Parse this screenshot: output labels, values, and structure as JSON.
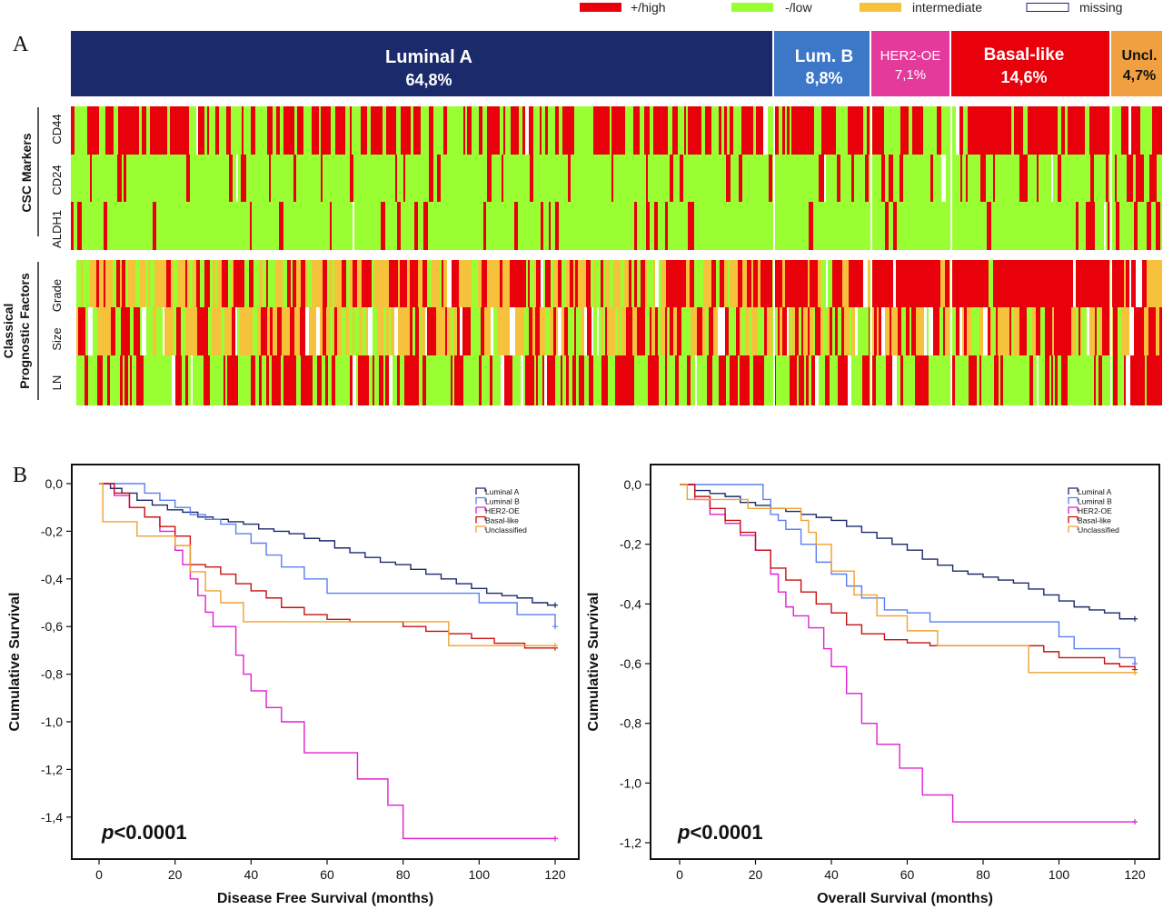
{
  "legend": [
    {
      "label": "+/high",
      "color": "#e8000b"
    },
    {
      "label": "-/low",
      "color": "#99ff33"
    },
    {
      "label": "intermediate",
      "color": "#f6c23b"
    },
    {
      "label": "missing",
      "color": "#ffffff"
    }
  ],
  "panel_a": {
    "letter": "A",
    "subtypes": [
      {
        "name": "Luminal A",
        "pct": "64,8%",
        "color": "#1b2a6b"
      },
      {
        "name": "Lum. B",
        "pct": "8,8%",
        "color": "#3d78c8"
      },
      {
        "name": "HER2-OE",
        "pct": "7,1%",
        "color": "#e43a9b"
      },
      {
        "name": "Basal-like",
        "pct": "14,6%",
        "color": "#e8000b"
      },
      {
        "name": "Uncl.",
        "pct": "4,7%",
        "color": "#f0a040"
      }
    ],
    "group1_label": "CSC Markers",
    "group1_rows": [
      "CD44",
      "CD24",
      "ALDH1"
    ],
    "group2_label_line1": "Classical",
    "group2_label_line2": "Prognostic Factors",
    "group2_rows": [
      "Grade",
      "Size",
      "LN"
    ]
  },
  "panel_b": {
    "letter": "B",
    "chart_data": [
      {
        "type": "line",
        "step": true,
        "xlabel": "Disease Free Survival (months)",
        "ylabel": "Cumulative Survival",
        "annotation": "p<0.0001",
        "xlim": [
          0,
          120
        ],
        "ylim": [
          -1.5,
          0
        ],
        "xticks": [
          "0",
          "20",
          "40",
          "60",
          "80",
          "100",
          "120"
        ],
        "yticks": [
          "0,0",
          "-0,2",
          "-0,4",
          "-0,6",
          "-0,8",
          "-1,0",
          "-1,2",
          "-1,4"
        ],
        "legend_position": "top-right",
        "series": [
          {
            "name": "Luminal A",
            "color": "#1b2a6b",
            "x": [
              0,
              3,
              6,
              10,
              14,
              18,
              22,
              26,
              30,
              34,
              38,
              42,
              46,
              50,
              54,
              58,
              62,
              66,
              70,
              74,
              78,
              82,
              86,
              90,
              94,
              98,
              102,
              106,
              110,
              114,
              118,
              120
            ],
            "y": [
              0,
              -0.02,
              -0.04,
              -0.07,
              -0.09,
              -0.11,
              -0.12,
              -0.14,
              -0.15,
              -0.16,
              -0.17,
              -0.19,
              -0.2,
              -0.21,
              -0.23,
              -0.24,
              -0.27,
              -0.29,
              -0.31,
              -0.33,
              -0.34,
              -0.36,
              -0.38,
              -0.4,
              -0.42,
              -0.44,
              -0.46,
              -0.47,
              -0.48,
              -0.5,
              -0.51,
              -0.51
            ]
          },
          {
            "name": "Luminal B",
            "color": "#5b7ff0",
            "x": [
              0,
              10,
              12,
              16,
              20,
              24,
              28,
              32,
              36,
              40,
              44,
              48,
              54,
              60,
              66,
              72,
              78,
              86,
              90,
              100,
              106,
              110,
              116,
              120
            ],
            "y": [
              0,
              0,
              -0.04,
              -0.07,
              -0.1,
              -0.13,
              -0.15,
              -0.17,
              -0.21,
              -0.25,
              -0.3,
              -0.35,
              -0.4,
              -0.46,
              -0.46,
              -0.46,
              -0.46,
              -0.46,
              -0.46,
              -0.5,
              -0.5,
              -0.55,
              -0.55,
              -0.6
            ]
          },
          {
            "name": "HER2-OE",
            "color": "#e020d0",
            "x": [
              0,
              4,
              8,
              12,
              16,
              20,
              22,
              24,
              26,
              28,
              30,
              32,
              36,
              38,
              40,
              44,
              48,
              54,
              64,
              68,
              72,
              76,
              80,
              100,
              120
            ],
            "y": [
              0,
              -0.05,
              -0.1,
              -0.14,
              -0.2,
              -0.28,
              -0.34,
              -0.4,
              -0.47,
              -0.54,
              -0.6,
              -0.6,
              -0.72,
              -0.8,
              -0.87,
              -0.94,
              -1.0,
              -1.13,
              -1.13,
              -1.24,
              -1.24,
              -1.35,
              -1.49,
              -1.49,
              -1.49
            ]
          },
          {
            "name": "Basal-like",
            "color": "#c81010",
            "x": [
              0,
              4,
              8,
              12,
              16,
              20,
              24,
              28,
              32,
              36,
              40,
              44,
              48,
              54,
              60,
              66,
              72,
              80,
              86,
              92,
              98,
              104,
              112,
              120
            ],
            "y": [
              0,
              -0.04,
              -0.1,
              -0.14,
              -0.18,
              -0.22,
              -0.34,
              -0.35,
              -0.38,
              -0.42,
              -0.45,
              -0.48,
              -0.52,
              -0.55,
              -0.57,
              -0.58,
              -0.58,
              -0.6,
              -0.62,
              -0.63,
              -0.65,
              -0.67,
              -0.69,
              -0.69
            ]
          },
          {
            "name": "Unclassified",
            "color": "#f0a030",
            "x": [
              0,
              1,
              10,
              20,
              24,
              28,
              32,
              38,
              40,
              60,
              80,
              92,
              100,
              120
            ],
            "y": [
              0,
              -0.16,
              -0.22,
              -0.26,
              -0.37,
              -0.45,
              -0.5,
              -0.58,
              -0.58,
              -0.58,
              -0.58,
              -0.68,
              -0.68,
              -0.68
            ]
          }
        ]
      },
      {
        "type": "line",
        "step": true,
        "xlabel": "Overall Survival (months)",
        "ylabel": "Cumulative Survival",
        "annotation": "p<0.0001",
        "xlim": [
          0,
          120
        ],
        "ylim": [
          -1.2,
          0
        ],
        "xticks": [
          "0",
          "20",
          "40",
          "60",
          "80",
          "100",
          "120"
        ],
        "yticks": [
          "0,0",
          "-0,2",
          "-0,4",
          "-0,6",
          "-0,8",
          "-1,0",
          "-1,2"
        ],
        "legend_position": "top-right",
        "series": [
          {
            "name": "Luminal A",
            "color": "#1b2a6b",
            "x": [
              0,
              4,
              8,
              12,
              16,
              20,
              24,
              28,
              32,
              36,
              40,
              44,
              48,
              52,
              56,
              60,
              64,
              68,
              72,
              76,
              80,
              84,
              88,
              92,
              96,
              100,
              104,
              108,
              112,
              116,
              120
            ],
            "y": [
              0,
              -0.02,
              -0.03,
              -0.04,
              -0.06,
              -0.07,
              -0.08,
              -0.09,
              -0.1,
              -0.11,
              -0.12,
              -0.14,
              -0.16,
              -0.18,
              -0.2,
              -0.22,
              -0.25,
              -0.27,
              -0.29,
              -0.3,
              -0.31,
              -0.32,
              -0.33,
              -0.35,
              -0.37,
              -0.39,
              -0.41,
              -0.42,
              -0.43,
              -0.45,
              -0.45
            ]
          },
          {
            "name": "Luminal B",
            "color": "#5b7ff0",
            "x": [
              0,
              20,
              22,
              24,
              26,
              28,
              32,
              36,
              40,
              44,
              48,
              54,
              60,
              66,
              72,
              80,
              92,
              100,
              104,
              110,
              116,
              120
            ],
            "y": [
              0,
              0,
              -0.05,
              -0.1,
              -0.12,
              -0.15,
              -0.2,
              -0.26,
              -0.3,
              -0.34,
              -0.38,
              -0.42,
              -0.43,
              -0.46,
              -0.46,
              -0.46,
              -0.46,
              -0.51,
              -0.55,
              -0.55,
              -0.58,
              -0.6
            ]
          },
          {
            "name": "HER2-OE",
            "color": "#e020d0",
            "x": [
              0,
              4,
              8,
              12,
              16,
              20,
              24,
              26,
              28,
              30,
              34,
              38,
              40,
              44,
              48,
              52,
              58,
              64,
              72,
              76,
              90,
              100,
              120
            ],
            "y": [
              0,
              -0.05,
              -0.1,
              -0.13,
              -0.17,
              -0.22,
              -0.3,
              -0.36,
              -0.41,
              -0.44,
              -0.48,
              -0.55,
              -0.61,
              -0.7,
              -0.8,
              -0.87,
              -0.95,
              -1.04,
              -1.13,
              -1.13,
              -1.13,
              -1.13,
              -1.13
            ]
          },
          {
            "name": "Basal-like",
            "color": "#c81010",
            "x": [
              0,
              4,
              8,
              12,
              16,
              20,
              24,
              28,
              32,
              36,
              40,
              44,
              48,
              54,
              60,
              66,
              72,
              80,
              90,
              96,
              100,
              108,
              112,
              116,
              120
            ],
            "y": [
              0,
              -0.04,
              -0.08,
              -0.12,
              -0.16,
              -0.22,
              -0.28,
              -0.32,
              -0.36,
              -0.4,
              -0.43,
              -0.47,
              -0.5,
              -0.52,
              -0.53,
              -0.54,
              -0.54,
              -0.54,
              -0.54,
              -0.56,
              -0.58,
              -0.58,
              -0.6,
              -0.61,
              -0.62
            ]
          },
          {
            "name": "Unclassified",
            "color": "#f0a030",
            "x": [
              0,
              2,
              18,
              26,
              32,
              34,
              36,
              40,
              46,
              52,
              60,
              68,
              80,
              92,
              100,
              120
            ],
            "y": [
              0,
              -0.05,
              -0.08,
              -0.08,
              -0.12,
              -0.16,
              -0.2,
              -0.29,
              -0.37,
              -0.44,
              -0.49,
              -0.54,
              -0.54,
              -0.63,
              -0.63,
              -0.63
            ]
          }
        ]
      }
    ]
  }
}
